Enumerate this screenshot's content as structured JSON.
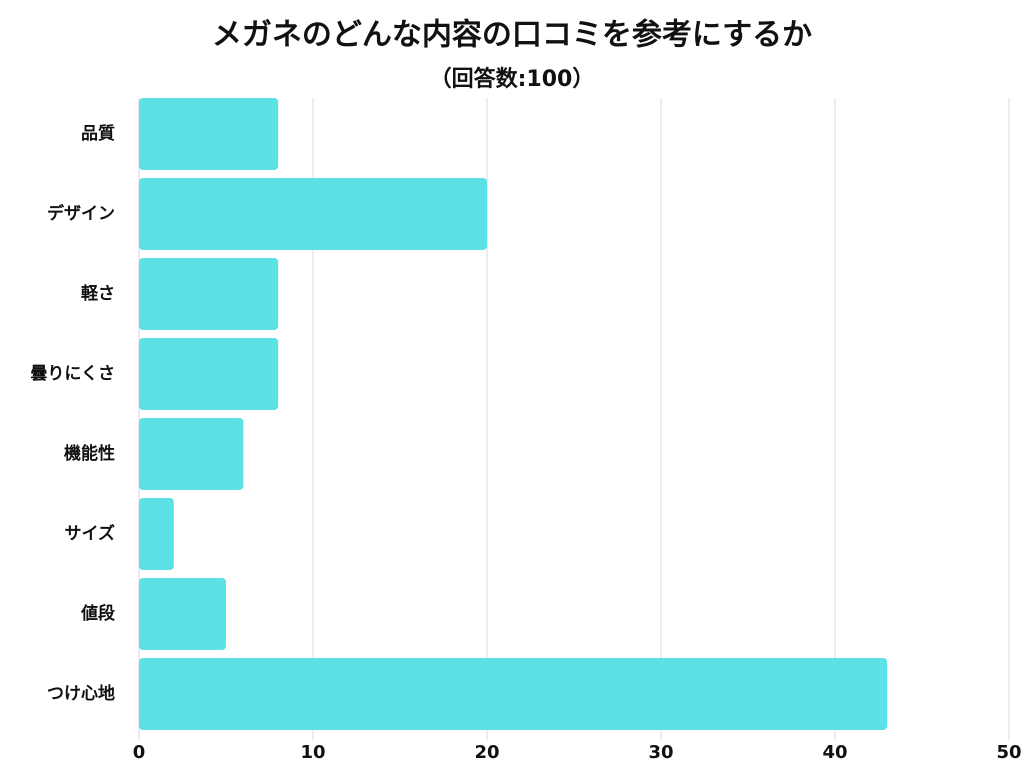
{
  "chart_data": {
    "type": "bar",
    "orientation": "horizontal",
    "title": "メガネのどんな内容の口コミを参考にするか",
    "subtitle": "（回答数:100）",
    "categories": [
      "品質",
      "デザイン",
      "軽さ",
      "曇りにくさ",
      "機能性",
      "サイズ",
      "値段",
      "つけ心地"
    ],
    "values": [
      8,
      20,
      8,
      8,
      6,
      2,
      5,
      43
    ],
    "color": "#5ce1e6",
    "xlim": [
      0,
      50
    ],
    "xticks": [
      0,
      10,
      20,
      30,
      40,
      50
    ],
    "grid": true
  }
}
